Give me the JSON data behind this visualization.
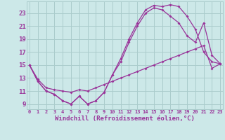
{
  "background_color": "#cce8e8",
  "grid_color": "#aacccc",
  "line_color": "#993399",
  "xlabel": "Windchill (Refroidissement éolien,°C)",
  "xlabel_fontsize": 6.5,
  "ylabel_fontsize": 6.5,
  "ytick_labels": [
    "9",
    "11",
    "13",
    "15",
    "17",
    "19",
    "21",
    "23"
  ],
  "ytick_values": [
    9,
    11,
    13,
    15,
    17,
    19,
    21,
    23
  ],
  "xtick_values": [
    0,
    1,
    2,
    3,
    4,
    5,
    6,
    7,
    8,
    9,
    10,
    11,
    12,
    13,
    14,
    15,
    16,
    17,
    18,
    19,
    20,
    21,
    22,
    23
  ],
  "ylim": [
    8.2,
    24.8
  ],
  "xlim": [
    -0.3,
    23.3
  ],
  "series1_x": [
    0,
    1,
    2,
    3,
    4,
    5,
    6,
    7,
    8,
    9,
    10,
    11,
    12,
    13,
    14,
    15,
    16,
    17,
    18,
    19,
    20,
    21,
    22,
    23
  ],
  "series1_y": [
    15.0,
    12.5,
    11.0,
    10.5,
    9.5,
    9.0,
    10.2,
    9.0,
    9.5,
    10.8,
    13.5,
    16.0,
    19.0,
    21.5,
    23.5,
    24.2,
    24.0,
    24.3,
    24.0,
    22.5,
    20.5,
    17.0,
    15.5,
    15.2
  ],
  "series2_x": [
    0,
    1,
    2,
    3,
    4,
    5,
    6,
    7,
    8,
    9,
    10,
    11,
    12,
    13,
    14,
    15,
    16,
    17,
    18,
    19,
    20,
    21,
    22,
    23
  ],
  "series2_y": [
    15.0,
    12.5,
    11.0,
    10.5,
    9.5,
    9.0,
    10.2,
    9.0,
    9.5,
    10.8,
    13.5,
    15.5,
    18.5,
    21.0,
    23.0,
    23.8,
    23.5,
    22.5,
    21.5,
    19.5,
    18.5,
    21.5,
    16.5,
    15.2
  ],
  "series3_x": [
    0,
    1,
    2,
    3,
    4,
    5,
    6,
    7,
    8,
    9,
    10,
    11,
    12,
    13,
    14,
    15,
    16,
    17,
    18,
    19,
    20,
    21,
    22,
    23
  ],
  "series3_y": [
    15.0,
    12.8,
    11.5,
    11.2,
    11.0,
    10.8,
    11.2,
    11.0,
    11.5,
    12.0,
    12.5,
    13.0,
    13.5,
    14.0,
    14.5,
    15.0,
    15.5,
    16.0,
    16.5,
    17.0,
    17.5,
    18.0,
    14.5,
    15.2
  ]
}
